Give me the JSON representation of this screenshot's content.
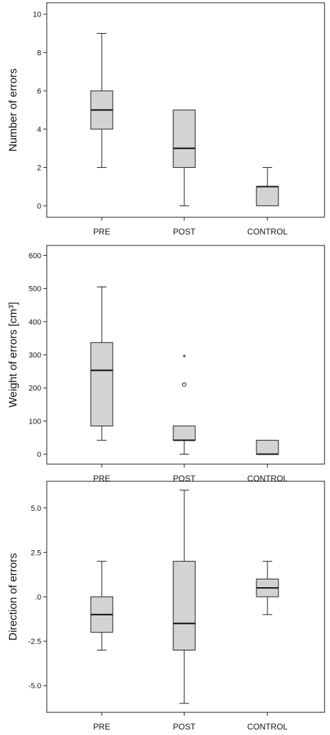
{
  "chart_data": [
    {
      "type": "boxplot",
      "ylabel": "Number of errors",
      "ylim": [
        -0.6,
        10.6
      ],
      "yticks": [
        0,
        2,
        4,
        6,
        8,
        10
      ],
      "ytick_labels": [
        "0",
        "2",
        "4",
        "6",
        "8",
        "10"
      ],
      "categories": [
        "PRE",
        "POST",
        "CONTROL"
      ],
      "boxes": [
        {
          "category": "PRE",
          "min": 2,
          "q1": 4,
          "median": 5,
          "q3": 6,
          "max": 9,
          "outliers": [],
          "extremes": []
        },
        {
          "category": "POST",
          "min": 0,
          "q1": 2,
          "median": 3,
          "q3": 5,
          "max": 5,
          "outliers": [],
          "extremes": []
        },
        {
          "category": "CONTROL",
          "min": 0,
          "q1": 0,
          "median": 1,
          "q3": 1,
          "max": 2,
          "outliers": [],
          "extremes": []
        }
      ]
    },
    {
      "type": "boxplot",
      "ylabel": "Weight of errors [cm³]",
      "ylim": [
        -30,
        630
      ],
      "yticks": [
        0,
        100,
        200,
        300,
        400,
        500,
        600
      ],
      "ytick_labels": [
        "0",
        "100",
        "200",
        "300",
        "400",
        "500",
        "600"
      ],
      "categories": [
        "PRE",
        "POST",
        "CONTROL"
      ],
      "boxes": [
        {
          "category": "PRE",
          "min": 42,
          "q1": 85,
          "median": 253,
          "q3": 337,
          "max": 505,
          "outliers": [],
          "extremes": []
        },
        {
          "category": "POST",
          "min": 0,
          "q1": 42,
          "median": 42,
          "q3": 85,
          "max": 85,
          "outliers": [
            210
          ],
          "extremes": [
            295
          ]
        },
        {
          "category": "CONTROL",
          "min": 0,
          "q1": 0,
          "median": 0,
          "q3": 42,
          "max": 42,
          "outliers": [],
          "extremes": []
        }
      ]
    },
    {
      "type": "boxplot",
      "ylabel": "Direction of errors",
      "ylim": [
        -6.5,
        6.5
      ],
      "yticks": [
        -5,
        -2.5,
        0,
        2.5,
        5
      ],
      "ytick_labels": [
        "-5.0",
        "-2.5",
        ".0",
        "2.5",
        "5.0"
      ],
      "categories": [
        "PRE",
        "POST",
        "CONTROL"
      ],
      "boxes": [
        {
          "category": "PRE",
          "min": -3,
          "q1": -2,
          "median": -1,
          "q3": 0,
          "max": 2,
          "outliers": [],
          "extremes": []
        },
        {
          "category": "POST",
          "min": -6,
          "q1": -3,
          "median": -1.5,
          "q3": 2,
          "max": 6,
          "outliers": [],
          "extremes": []
        },
        {
          "category": "CONTROL",
          "min": -1,
          "q1": 0,
          "median": 0.5,
          "q3": 1,
          "max": 2,
          "outliers": [],
          "extremes": []
        }
      ]
    }
  ],
  "colors": {
    "box_fill": "#d3d3d3",
    "stroke": "#1a1a1a",
    "background": "#ffffff"
  }
}
